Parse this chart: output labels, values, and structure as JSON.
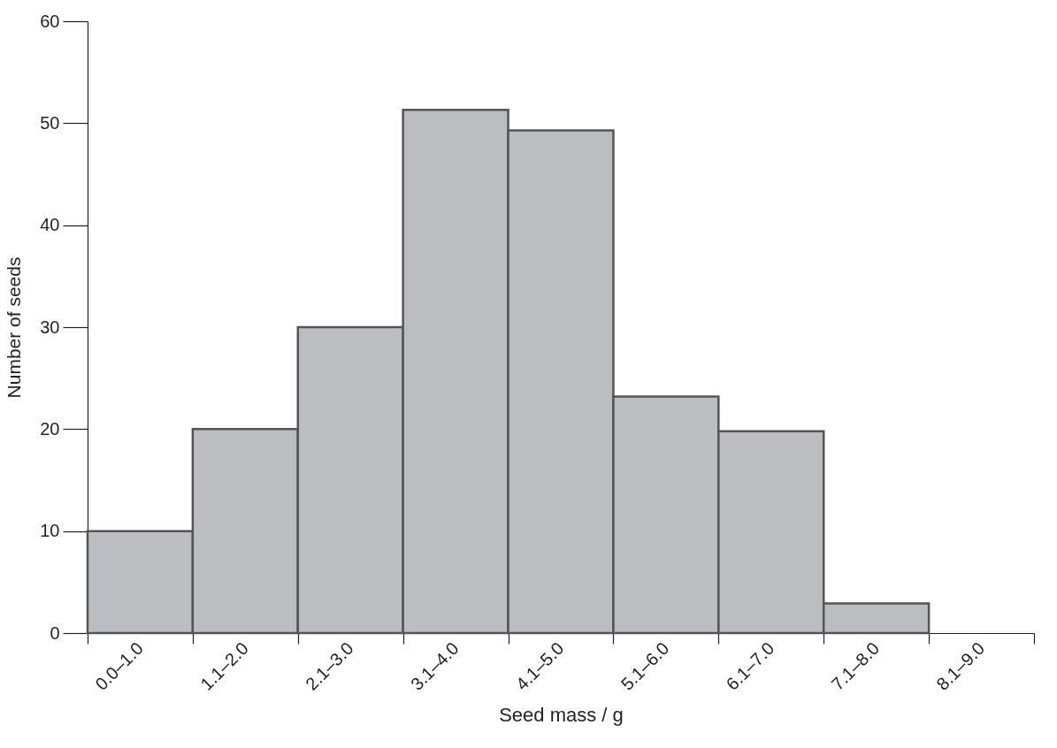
{
  "chart_data": {
    "type": "bar",
    "xlabel": "Seed mass / g",
    "ylabel": "Number of seeds",
    "categories": [
      "0.0–1.0",
      "1.1–2.0",
      "2.1–3.0",
      "3.1–4.0",
      "4.1–5.0",
      "5.1–6.0",
      "6.1–7.0",
      "7.1–8.0",
      "8.1–9.0"
    ],
    "values": [
      10,
      20,
      30,
      51.3,
      49.3,
      23.2,
      19.8,
      2.9,
      null
    ],
    "color": "#bcbdc1",
    "ylim": [
      0,
      60
    ],
    "yticks": [
      0,
      10,
      20,
      30,
      40,
      50,
      60
    ],
    "grid": false
  }
}
